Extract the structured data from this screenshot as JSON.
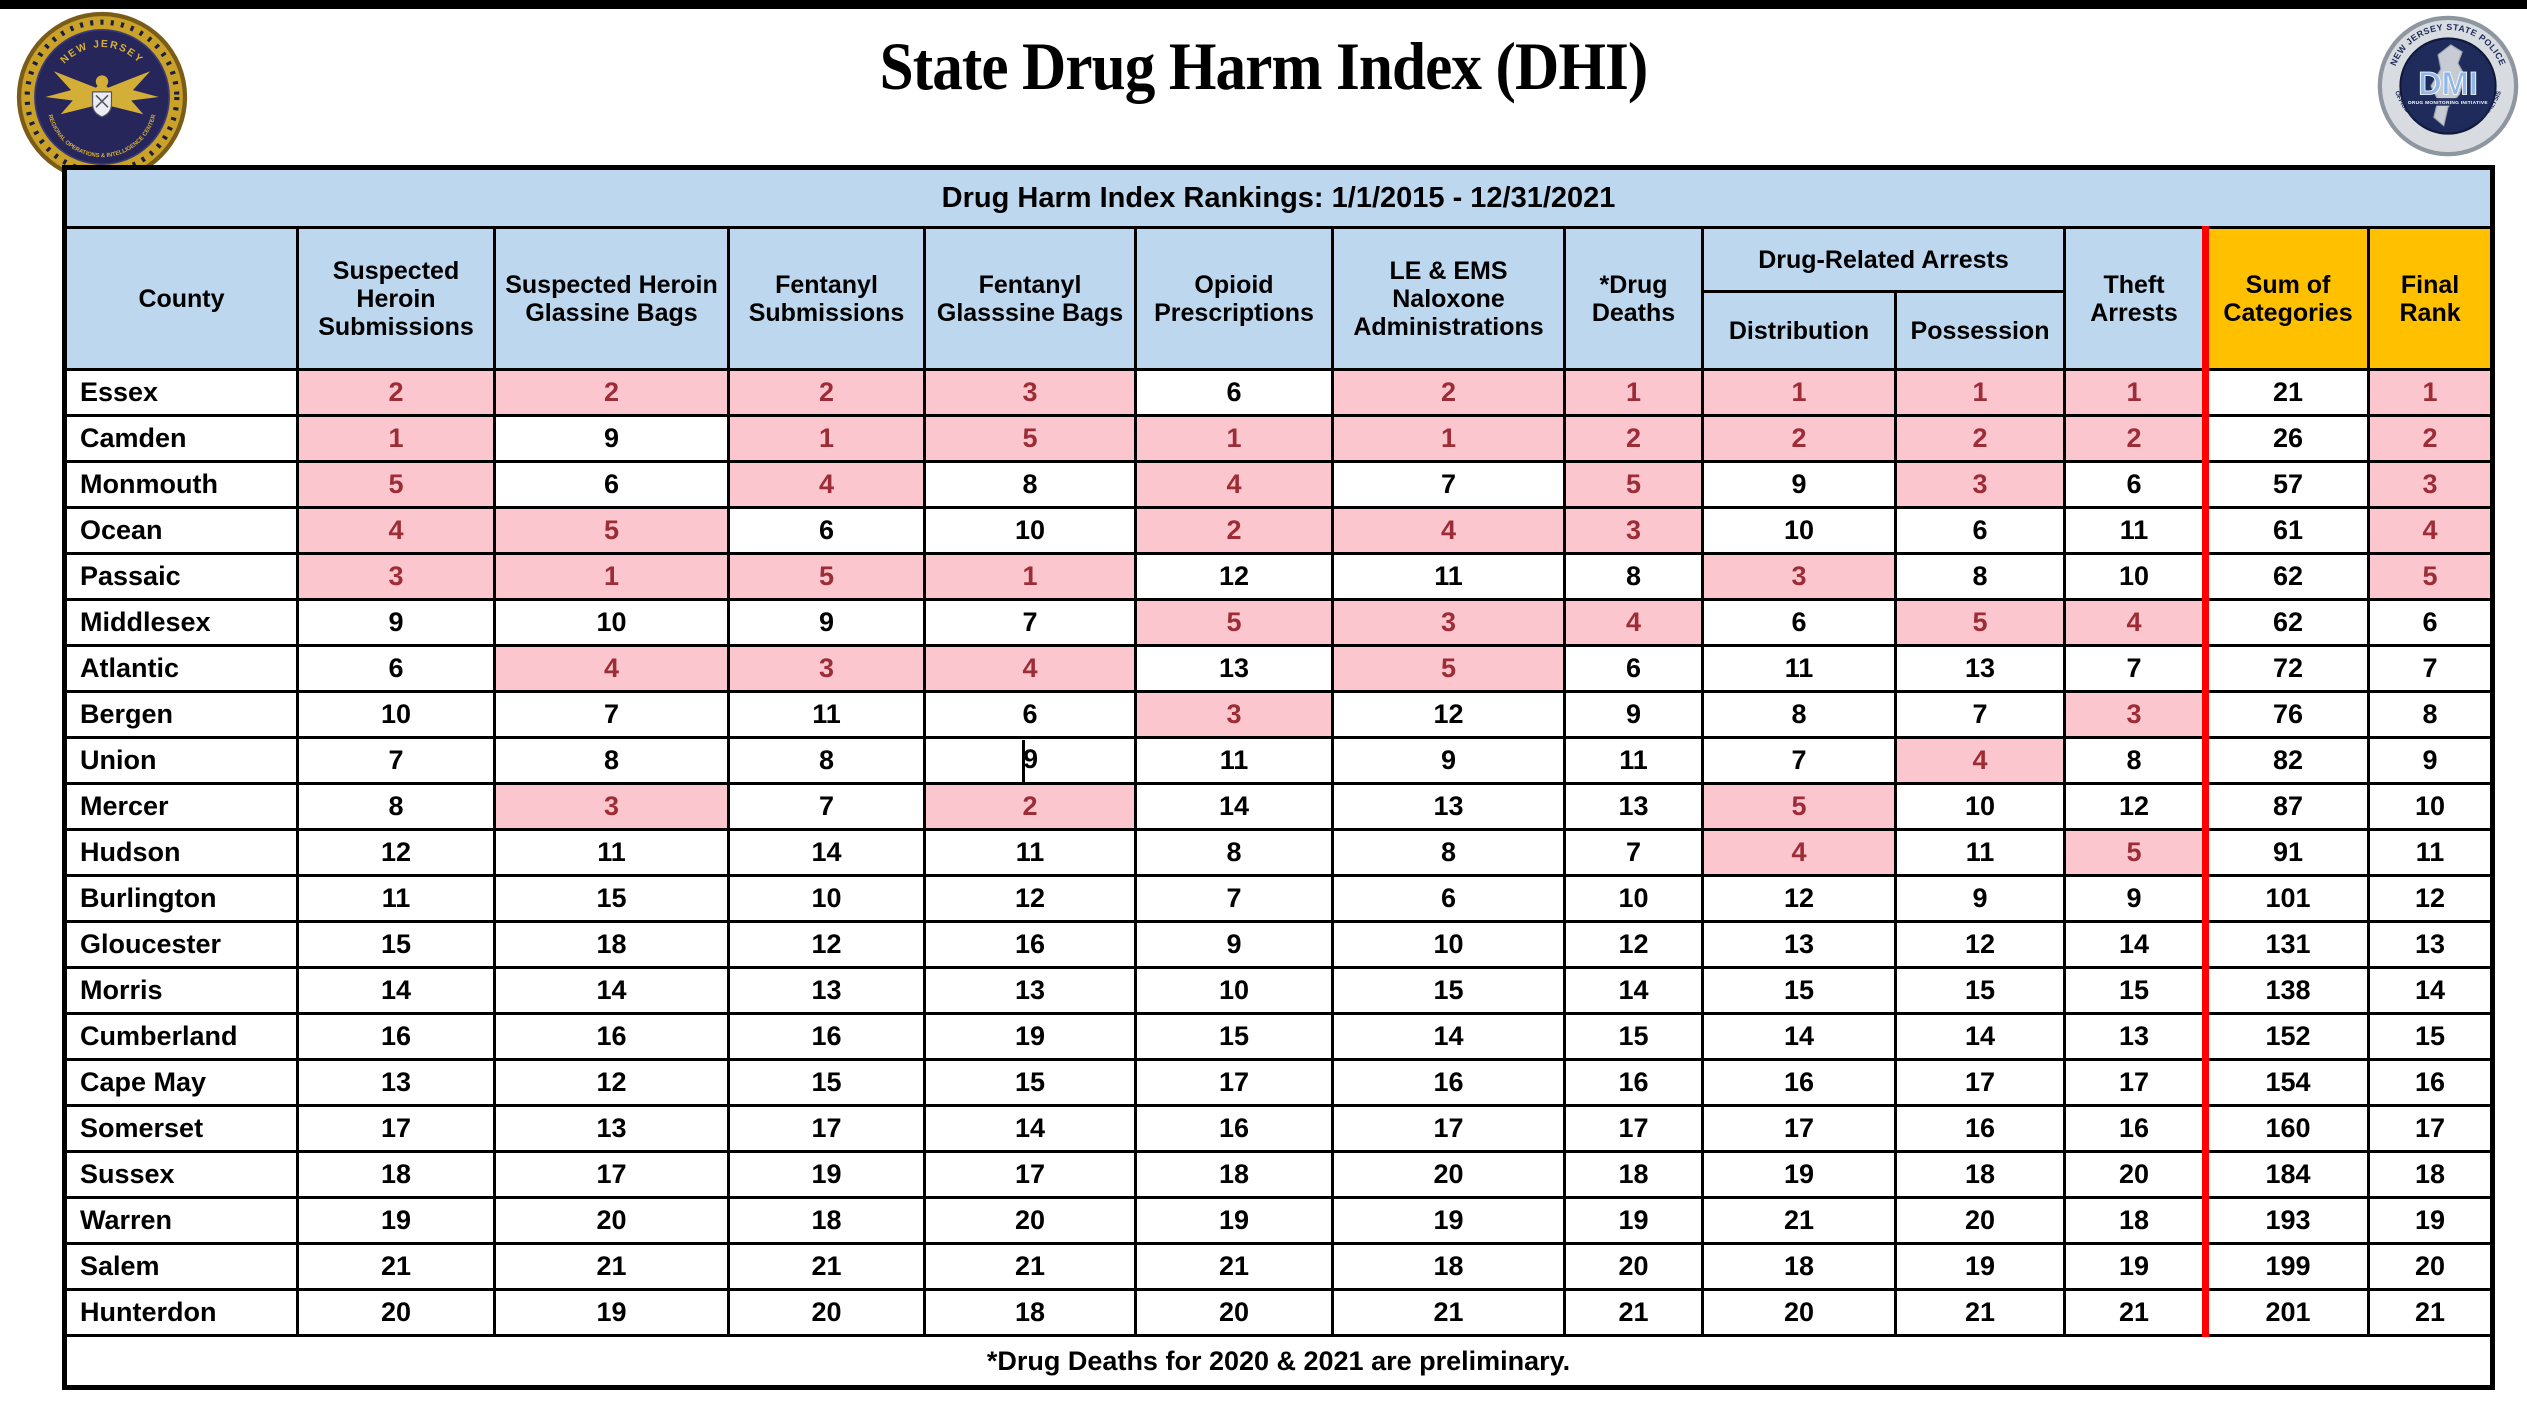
{
  "page": {
    "title": "State Drug Harm Index (DHI)"
  },
  "logos": {
    "left": {
      "ring_top": "NEW JERSEY",
      "ring_bottom": "REGIONAL OPERATIONS & INTELLIGENCE CENTER"
    },
    "right": {
      "ring_top": "NEW JERSEY STATE POLICE",
      "ring_bottom": "OFFICE OF DRUG MONITORING & ANALYSIS",
      "center": "DMI",
      "center_sub": "DRUG MONITORING INITIATIVE"
    }
  },
  "table": {
    "caption": "Drug Harm Index Rankings: 1/1/2015 - 12/31/2021",
    "group_header": "Drug-Related Arrests",
    "columns": [
      "County",
      "Suspected Heroin Submissions",
      "Suspected Heroin Glassine Bags",
      "Fentanyl Submissions",
      "Fentanyl Glasssine Bags",
      "Opioid Prescriptions",
      "LE & EMS Naloxone Administrations",
      "*Drug Deaths",
      "Distribution",
      "Possession",
      "Theft Arrests",
      "Sum of Categories",
      "Final Rank"
    ],
    "rows": [
      {
        "county": "Essex",
        "values": [
          2,
          2,
          2,
          3,
          6,
          2,
          1,
          1,
          1,
          1,
          21,
          1
        ]
      },
      {
        "county": "Camden",
        "values": [
          1,
          9,
          1,
          5,
          1,
          1,
          2,
          2,
          2,
          2,
          26,
          2
        ]
      },
      {
        "county": "Monmouth",
        "values": [
          5,
          6,
          4,
          8,
          4,
          7,
          5,
          9,
          3,
          6,
          57,
          3
        ]
      },
      {
        "county": "Ocean",
        "values": [
          4,
          5,
          6,
          10,
          2,
          4,
          3,
          10,
          6,
          11,
          61,
          4
        ]
      },
      {
        "county": "Passaic",
        "values": [
          3,
          1,
          5,
          1,
          12,
          11,
          8,
          3,
          8,
          10,
          62,
          5
        ]
      },
      {
        "county": "Middlesex",
        "values": [
          9,
          10,
          9,
          7,
          5,
          3,
          4,
          6,
          5,
          4,
          62,
          6
        ]
      },
      {
        "county": "Atlantic",
        "values": [
          6,
          4,
          3,
          4,
          13,
          5,
          6,
          11,
          13,
          7,
          72,
          7
        ]
      },
      {
        "county": "Bergen",
        "values": [
          10,
          7,
          11,
          6,
          3,
          12,
          9,
          8,
          7,
          3,
          76,
          8
        ]
      },
      {
        "county": "Union",
        "values": [
          7,
          8,
          8,
          9,
          11,
          9,
          11,
          7,
          4,
          8,
          82,
          9
        ]
      },
      {
        "county": "Mercer",
        "values": [
          8,
          3,
          7,
          2,
          14,
          13,
          13,
          5,
          10,
          12,
          87,
          10
        ]
      },
      {
        "county": "Hudson",
        "values": [
          12,
          11,
          14,
          11,
          8,
          8,
          7,
          4,
          11,
          5,
          91,
          11
        ]
      },
      {
        "county": "Burlington",
        "values": [
          11,
          15,
          10,
          12,
          7,
          6,
          10,
          12,
          9,
          9,
          101,
          12
        ]
      },
      {
        "county": "Gloucester",
        "values": [
          15,
          18,
          12,
          16,
          9,
          10,
          12,
          13,
          12,
          14,
          131,
          13
        ]
      },
      {
        "county": "Morris",
        "values": [
          14,
          14,
          13,
          13,
          10,
          15,
          14,
          15,
          15,
          15,
          138,
          14
        ]
      },
      {
        "county": "Cumberland",
        "values": [
          16,
          16,
          16,
          19,
          15,
          14,
          15,
          14,
          14,
          13,
          152,
          15
        ]
      },
      {
        "county": "Cape May",
        "values": [
          13,
          12,
          15,
          15,
          17,
          16,
          16,
          16,
          17,
          17,
          154,
          16
        ]
      },
      {
        "county": "Somerset",
        "values": [
          17,
          13,
          17,
          14,
          16,
          17,
          17,
          17,
          16,
          16,
          160,
          17
        ]
      },
      {
        "county": "Sussex",
        "values": [
          18,
          17,
          19,
          17,
          18,
          20,
          18,
          19,
          18,
          20,
          184,
          18
        ]
      },
      {
        "county": "Warren",
        "values": [
          19,
          20,
          18,
          20,
          19,
          19,
          19,
          21,
          20,
          18,
          193,
          19
        ]
      },
      {
        "county": "Salem",
        "values": [
          21,
          21,
          21,
          21,
          21,
          18,
          20,
          18,
          19,
          19,
          199,
          20
        ]
      },
      {
        "county": "Hunterdon",
        "values": [
          20,
          19,
          20,
          18,
          20,
          21,
          21,
          20,
          21,
          21,
          201,
          21
        ]
      }
    ],
    "footnote": "*Drug Deaths for 2020 & 2021 are preliminary.",
    "highlight_rule": "rank values 1-5 are highlighted, except in Sum of Categories",
    "colors": {
      "blue": "#BDD7EE",
      "gold": "#FFC000",
      "pink": "#FBC6CE",
      "hot": "#9C2D36",
      "red": "#FF0000"
    }
  },
  "cursor_artifact": {
    "county": "Union",
    "value_index": 3
  }
}
